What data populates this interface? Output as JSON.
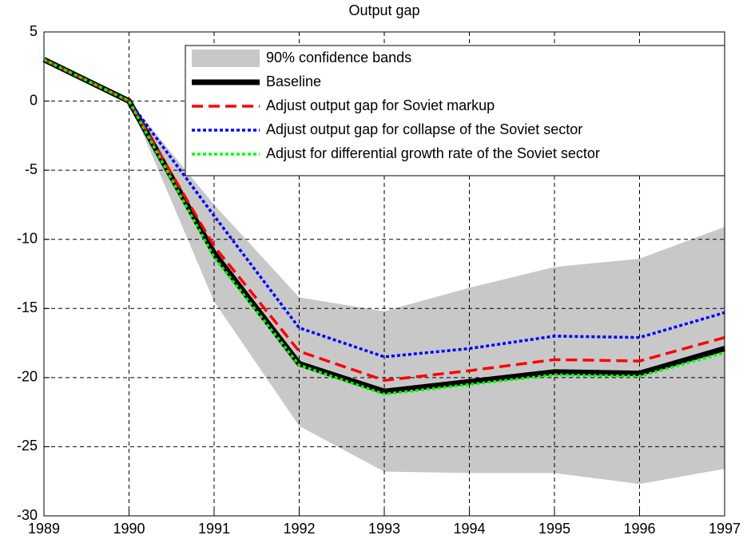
{
  "chart_data": {
    "type": "line",
    "title": "Output gap",
    "x": [
      1989,
      1990,
      1991,
      1992,
      1993,
      1994,
      1995,
      1996,
      1997
    ],
    "xlim": [
      1989,
      1997
    ],
    "xticks": [
      1989,
      1990,
      1991,
      1992,
      1993,
      1994,
      1995,
      1996,
      1997
    ],
    "ylim": [
      -30,
      5
    ],
    "yticks": [
      -30,
      -25,
      -20,
      -15,
      -10,
      -5,
      0,
      5
    ],
    "grid": true,
    "legend": "upper right",
    "band": {
      "name": "90% confidence bands",
      "color": "#c8c8c8",
      "upper": [
        3,
        0,
        -7.5,
        -14.2,
        -15.2,
        -13.5,
        -12,
        -11.4,
        -9.1
      ],
      "lower": [
        3,
        0,
        -14.5,
        -23.5,
        -26.8,
        -26.9,
        -26.9,
        -27.7,
        -26.6
      ]
    },
    "series": [
      {
        "name": "Baseline",
        "color": "#000000",
        "line_style": "solid",
        "values": [
          3,
          0,
          -11,
          -19,
          -21,
          -20.3,
          -19.6,
          -19.7,
          -17.9
        ]
      },
      {
        "name": "Adjust output gap for Soviet markup",
        "color": "#ff0000",
        "line_style": "dashed",
        "values": [
          3,
          0,
          -10.5,
          -18.1,
          -20.2,
          -19.5,
          -18.7,
          -18.8,
          -17.1
        ]
      },
      {
        "name": "Adjust output gap for collapse of the Soviet sector",
        "color": "#0000ff",
        "line_style": "dotted",
        "values": [
          3,
          0,
          -8.3,
          -16.4,
          -18.5,
          -17.9,
          -17,
          -17.1,
          -15.3
        ]
      },
      {
        "name": "Adjust for differential growth rate of the Soviet sector",
        "color": "#00ff00",
        "line_style": "dotted",
        "values": [
          3,
          0,
          -11.3,
          -19.1,
          -21.2,
          -20.5,
          -19.8,
          -19.9,
          -18.2
        ]
      }
    ]
  }
}
